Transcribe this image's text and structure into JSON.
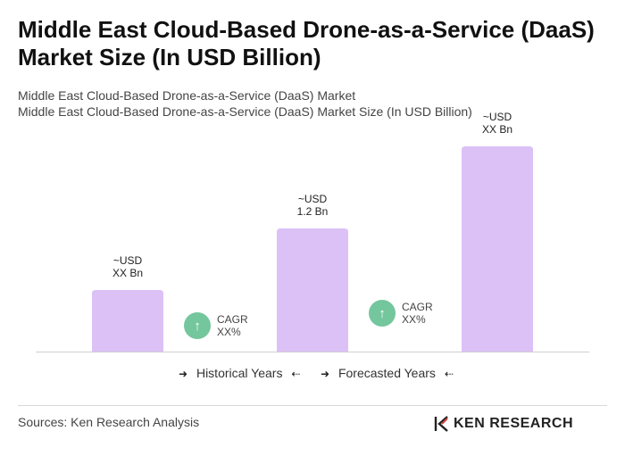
{
  "title": "Middle East Cloud-Based Drone-as-a-Service (DaaS) Market Size (In USD Billion)",
  "subtitle_line1": "Middle East Cloud-Based Drone-as-a-Service (DaaS) Market",
  "subtitle_line2": "Middle East Cloud-Based Drone-as-a-Service (DaaS) Market Size (In USD Billion)",
  "chart_data": {
    "type": "bar",
    "categories": [
      "",
      "",
      ""
    ],
    "values": [
      0.6,
      1.2,
      2.0
    ],
    "bar_labels": [
      {
        "line1": "~USD",
        "line2": "XX Bn"
      },
      {
        "line1": "~USD",
        "line2": "1.2 Bn"
      },
      {
        "line1": "~USD",
        "line2": "XX Bn"
      }
    ],
    "cagr": [
      {
        "label": "CAGR",
        "value": "XX%"
      },
      {
        "label": "CAGR",
        "value": "XX%"
      }
    ],
    "bar_color": "#dcc1f7",
    "cagr_color": "#74c69d",
    "ylim": [
      0,
      2.0
    ],
    "grid": false,
    "legend": [
      {
        "label": "Historical Years"
      },
      {
        "label": "Forecasted Years"
      }
    ]
  },
  "footer": {
    "sources": "Sources: Ken Research Analysis",
    "brand": "KEN RESEARCH",
    "brand_icon": "ken-research-logo-icon"
  }
}
